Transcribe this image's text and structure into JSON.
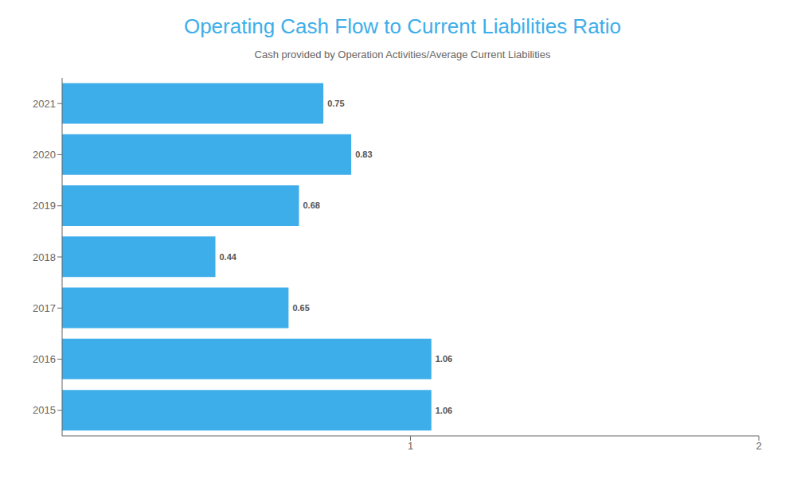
{
  "chart_data": {
    "type": "bar",
    "orientation": "horizontal",
    "title": "Operating Cash Flow to Current Liabilities Ratio",
    "subtitle": "Cash provided by Operation Activities/Average Current Liabilities",
    "categories": [
      "2021",
      "2020",
      "2019",
      "2018",
      "2017",
      "2016",
      "2015"
    ],
    "values": [
      0.75,
      0.83,
      0.68,
      0.44,
      0.65,
      1.06,
      1.06
    ],
    "color": "#3daee9",
    "xlim": [
      0,
      2
    ],
    "xticks": [
      1,
      2
    ],
    "grid": false,
    "data_labels": true
  }
}
